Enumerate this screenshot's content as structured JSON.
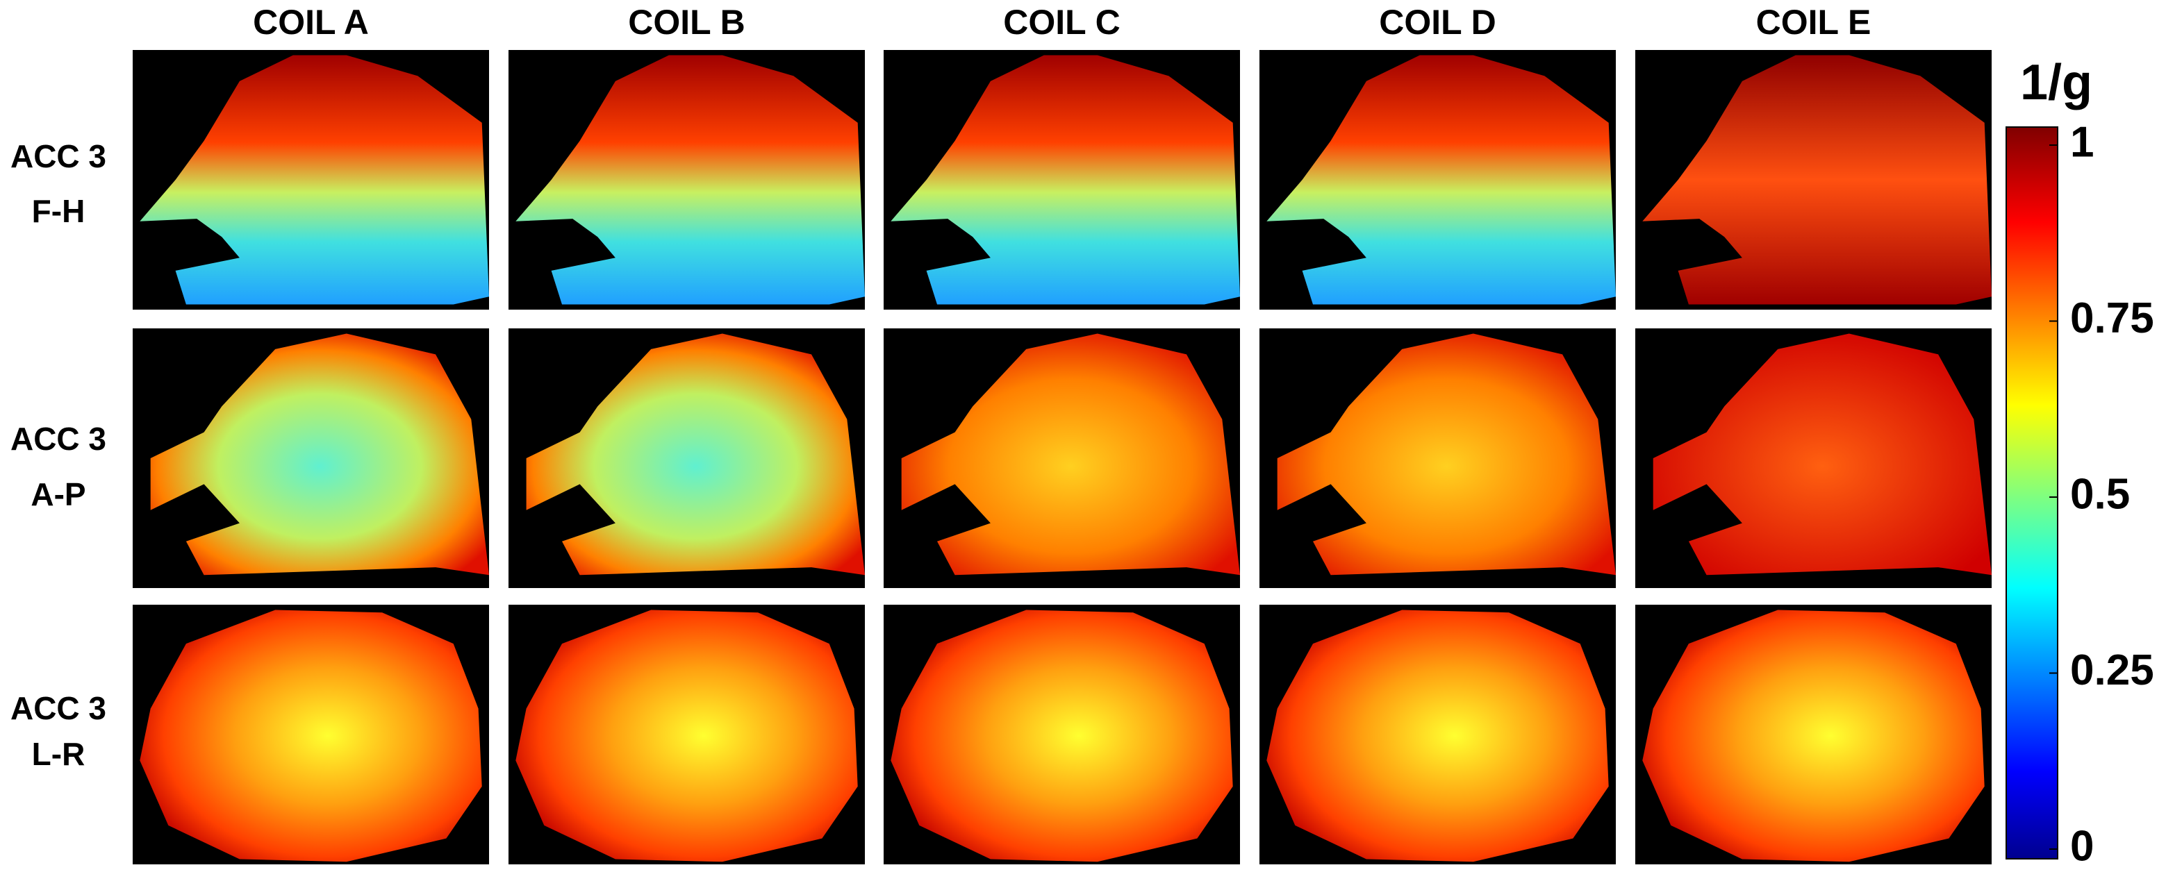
{
  "columns": [
    "COIL A",
    "COIL B",
    "COIL C",
    "COIL D",
    "COIL E"
  ],
  "rows": [
    {
      "line1": "ACC 3",
      "line2": "F-H"
    },
    {
      "line1": "ACC 3",
      "line2": "A-P"
    },
    {
      "line1": "ACC 3",
      "line2": "L-R"
    }
  ],
  "colorbar": {
    "label": "1/g",
    "lim": [
      0,
      1
    ],
    "ticks": [
      0,
      0.25,
      0.5,
      0.75,
      1
    ]
  }
}
